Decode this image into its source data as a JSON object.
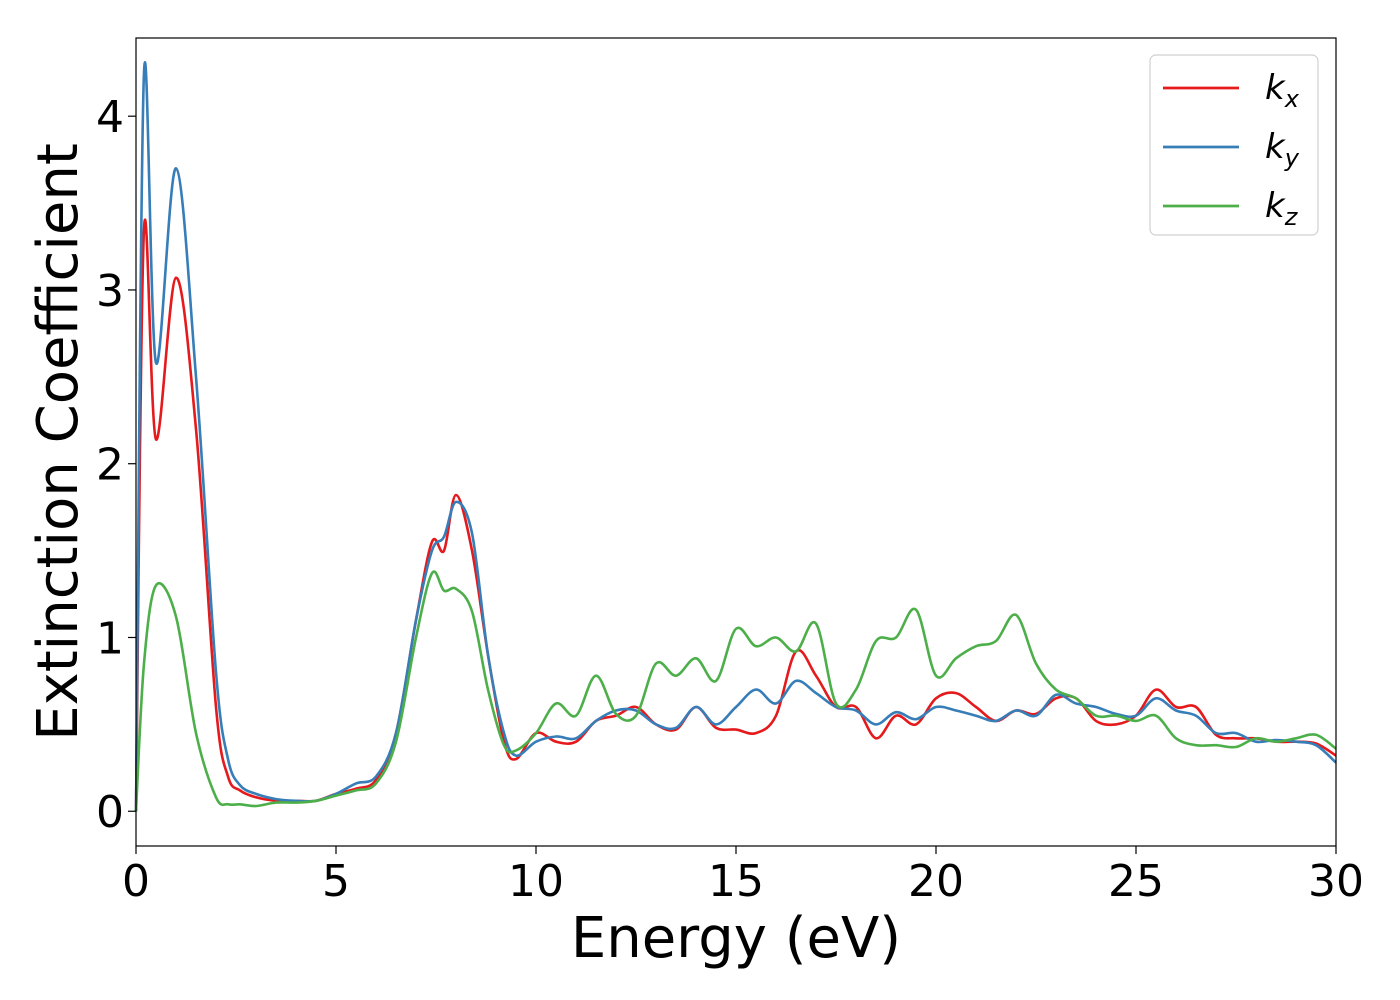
{
  "chart_data": {
    "type": "line",
    "title": "",
    "xlabel": "Energy (eV)",
    "ylabel": "Extinction Coefficient",
    "xlim": [
      0,
      30
    ],
    "ylim": [
      -0.2,
      4.45
    ],
    "xticks": [
      0,
      5,
      10,
      15,
      20,
      25,
      30
    ],
    "yticks": [
      0,
      1,
      2,
      3,
      4
    ],
    "grid": false,
    "legend_position": "top-right",
    "x": [
      0,
      0.2,
      0.5,
      1.0,
      1.5,
      2.0,
      2.3,
      2.6,
      3.0,
      3.5,
      4.0,
      4.5,
      5.0,
      5.5,
      6.0,
      6.5,
      7.0,
      7.4,
      7.7,
      8.0,
      8.4,
      8.8,
      9.2,
      9.5,
      10.0,
      10.5,
      11.0,
      11.5,
      12.0,
      12.5,
      13.0,
      13.5,
      14.0,
      14.5,
      15.0,
      15.5,
      16.0,
      16.5,
      17.0,
      17.5,
      18.0,
      18.5,
      19.0,
      19.5,
      20.0,
      20.5,
      21.0,
      21.5,
      22.0,
      22.5,
      23.0,
      23.5,
      24.0,
      24.5,
      25.0,
      25.5,
      26.0,
      26.5,
      27.0,
      27.5,
      28.0,
      28.5,
      29.0,
      29.5,
      30.0
    ],
    "series": [
      {
        "name": "k_x",
        "label": "k",
        "subscript": "x",
        "color": "#e41a1c",
        "values": [
          0,
          3.35,
          2.14,
          3.07,
          2.2,
          0.6,
          0.2,
          0.12,
          0.08,
          0.06,
          0.06,
          0.06,
          0.1,
          0.13,
          0.18,
          0.45,
          1.1,
          1.55,
          1.5,
          1.82,
          1.5,
          0.9,
          0.4,
          0.3,
          0.45,
          0.4,
          0.4,
          0.52,
          0.55,
          0.6,
          0.5,
          0.47,
          0.6,
          0.48,
          0.47,
          0.45,
          0.55,
          0.92,
          0.78,
          0.6,
          0.6,
          0.42,
          0.55,
          0.5,
          0.65,
          0.68,
          0.6,
          0.52,
          0.58,
          0.56,
          0.65,
          0.65,
          0.52,
          0.5,
          0.55,
          0.7,
          0.6,
          0.6,
          0.44,
          0.42,
          0.42,
          0.4,
          0.4,
          0.39,
          0.32
        ]
      },
      {
        "name": "k_y",
        "label": "k",
        "subscript": "y",
        "color": "#377eb8",
        "values": [
          0,
          4.25,
          2.58,
          3.7,
          2.5,
          0.8,
          0.3,
          0.15,
          0.1,
          0.07,
          0.06,
          0.06,
          0.1,
          0.16,
          0.2,
          0.45,
          1.1,
          1.5,
          1.58,
          1.78,
          1.6,
          0.9,
          0.45,
          0.32,
          0.4,
          0.43,
          0.42,
          0.52,
          0.58,
          0.58,
          0.5,
          0.48,
          0.6,
          0.5,
          0.6,
          0.7,
          0.62,
          0.75,
          0.68,
          0.6,
          0.58,
          0.5,
          0.57,
          0.53,
          0.6,
          0.58,
          0.55,
          0.52,
          0.58,
          0.55,
          0.67,
          0.62,
          0.6,
          0.56,
          0.55,
          0.65,
          0.58,
          0.55,
          0.45,
          0.45,
          0.4,
          0.41,
          0.4,
          0.38,
          0.28
        ]
      },
      {
        "name": "k_z",
        "label": "k",
        "subscript": "z",
        "color": "#4daf4a",
        "values": [
          0,
          0.85,
          1.3,
          1.12,
          0.45,
          0.08,
          0.04,
          0.04,
          0.03,
          0.05,
          0.05,
          0.06,
          0.09,
          0.12,
          0.16,
          0.4,
          1.0,
          1.37,
          1.27,
          1.28,
          1.15,
          0.7,
          0.38,
          0.35,
          0.45,
          0.62,
          0.55,
          0.78,
          0.56,
          0.55,
          0.85,
          0.78,
          0.88,
          0.75,
          1.05,
          0.95,
          1.0,
          0.92,
          1.08,
          0.62,
          0.7,
          0.98,
          1.0,
          1.16,
          0.78,
          0.88,
          0.95,
          0.98,
          1.13,
          0.85,
          0.7,
          0.65,
          0.55,
          0.55,
          0.52,
          0.55,
          0.42,
          0.38,
          0.38,
          0.37,
          0.42,
          0.4,
          0.42,
          0.44,
          0.36
        ]
      }
    ]
  }
}
